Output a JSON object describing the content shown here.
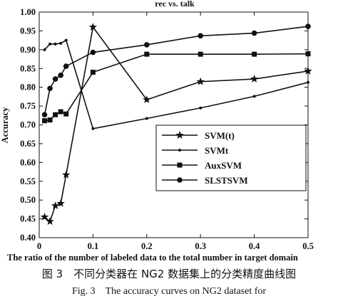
{
  "chart_data": {
    "type": "line",
    "title": "rec vs. talk",
    "xlabel": "The ratio of the number of labeled data to the total number in target domain",
    "ylabel": "Accuracy",
    "xlim": [
      0,
      0.5
    ],
    "ylim": [
      0.4,
      1.0
    ],
    "x_ticks": [
      0,
      0.1,
      0.2,
      0.3,
      0.4,
      0.5
    ],
    "x_tick_labels": [
      "0",
      "0.1",
      "0.2",
      "0.3",
      "0.4",
      "0.5"
    ],
    "y_ticks": [
      0.4,
      0.45,
      0.5,
      0.55,
      0.6,
      0.65,
      0.7,
      0.75,
      0.8,
      0.85,
      0.9,
      0.95,
      1.0
    ],
    "y_tick_labels": [
      "0.40",
      "0.45",
      "0.50",
      "0.55",
      "0.60",
      "0.65",
      "0.70",
      "0.75",
      "0.80",
      "0.85",
      "0.90",
      "0.95",
      "1.00"
    ],
    "grid": false,
    "legend_position": "center-right",
    "series": [
      {
        "name": "SVM(t)",
        "marker": "star",
        "color": "#111111",
        "x": [
          0.01,
          0.02,
          0.03,
          0.04,
          0.05,
          0.1,
          0.2,
          0.3,
          0.4,
          0.5
        ],
        "y": [
          0.455,
          0.443,
          0.485,
          0.491,
          0.567,
          0.96,
          0.767,
          0.815,
          0.822,
          0.843
        ]
      },
      {
        "name": "SVMt",
        "marker": "dot",
        "color": "#111111",
        "x": [
          0.01,
          0.02,
          0.03,
          0.04,
          0.05,
          0.1,
          0.2,
          0.3,
          0.4,
          0.5
        ],
        "y": [
          0.9,
          0.915,
          0.915,
          0.917,
          0.925,
          0.69,
          0.717,
          0.745,
          0.776,
          0.813
        ]
      },
      {
        "name": "AuxSVM",
        "marker": "square",
        "color": "#111111",
        "x": [
          0.01,
          0.02,
          0.03,
          0.04,
          0.05,
          0.1,
          0.2,
          0.3,
          0.4,
          0.5
        ],
        "y": [
          0.711,
          0.713,
          0.727,
          0.735,
          0.729,
          0.84,
          0.888,
          0.888,
          0.888,
          0.889
        ]
      },
      {
        "name": "SLSTSVM",
        "marker": "circle",
        "color": "#111111",
        "x": [
          0.01,
          0.02,
          0.03,
          0.04,
          0.05,
          0.1,
          0.2,
          0.3,
          0.4,
          0.5
        ],
        "y": [
          0.727,
          0.797,
          0.822,
          0.832,
          0.856,
          0.893,
          0.913,
          0.937,
          0.944,
          0.962
        ]
      }
    ]
  },
  "captions": {
    "cn": "图 3　不同分类器在 NG2 数据集上的分类精度曲线图",
    "en": "Fig. 3　The accuracy curves on NG2 dataset for"
  }
}
